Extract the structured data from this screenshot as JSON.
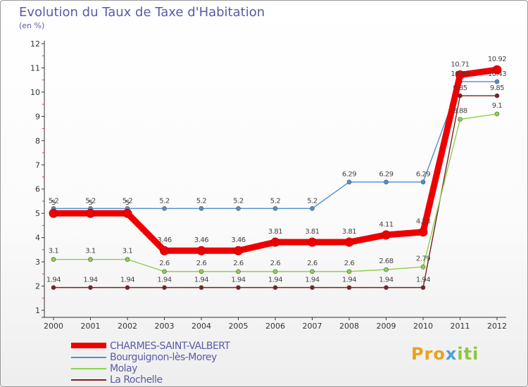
{
  "header": {
    "title": "Evolution du Taux de Taxe d'Habitation",
    "subtitle": "(en %)"
  },
  "logo": {
    "text_main": "Pro",
    "text_x": "x",
    "text_end": "iti"
  },
  "chart_data": {
    "type": "line",
    "title": "Evolution du Taux de Taxe d'Habitation",
    "ylabel": "(en %)",
    "xlabel": "",
    "ylim": [
      1,
      12
    ],
    "yticks": [
      1,
      2,
      3,
      4,
      5,
      6,
      7,
      8,
      9,
      10,
      11,
      12
    ],
    "categories": [
      "2000",
      "2001",
      "2002",
      "2003",
      "2004",
      "2005",
      "2006",
      "2007",
      "2008",
      "2009",
      "2010",
      "2011",
      "2012"
    ],
    "legend_position": "bottom-left",
    "series": [
      {
        "name": "CHARMES-SAINT-VALBERT",
        "color": "#ee0000",
        "values": [
          5,
          5,
          5,
          3.46,
          3.46,
          3.46,
          3.81,
          3.81,
          3.81,
          4.11,
          4.23,
          10.71,
          10.92
        ],
        "labels": [
          "5",
          "5",
          "5",
          "3.46",
          "3.46",
          "3.46",
          "3.81",
          "3.81",
          "3.81",
          "4.11",
          "4.23",
          "10.71",
          "10.92"
        ]
      },
      {
        "name": "Bourguignon-lès-Morey",
        "color": "#4f8fd0",
        "values": [
          5.2,
          5.2,
          5.2,
          5.2,
          5.2,
          5.2,
          5.2,
          5.2,
          6.29,
          6.29,
          6.29,
          10.43,
          10.43
        ],
        "labels": [
          "5.2",
          "5.2",
          "5.2",
          "5.2",
          "5.2",
          "5.2",
          "5.2",
          "5.2",
          "6.29",
          "6.29",
          "6.29",
          "10.43",
          "10.43"
        ]
      },
      {
        "name": "Molay",
        "color": "#8cd050",
        "values": [
          3.1,
          3.1,
          3.1,
          2.6,
          2.6,
          2.6,
          2.6,
          2.6,
          2.6,
          2.68,
          2.79,
          8.88,
          9.1
        ],
        "labels": [
          "3.1",
          "3.1",
          "3.1",
          "2.6",
          "2.6",
          "2.6",
          "2.6",
          "2.6",
          "2.6",
          "2.68",
          "2.79",
          "8.88",
          "9.1"
        ]
      },
      {
        "name": "La Rochelle",
        "color": "#7a2020",
        "values": [
          1.94,
          1.94,
          1.94,
          1.94,
          1.94,
          1.94,
          1.94,
          1.94,
          1.94,
          1.94,
          1.94,
          9.85,
          9.85
        ],
        "labels": [
          "1.94",
          "1.94",
          "1.94",
          "1.94",
          "1.94",
          "1.94",
          "1.94",
          "1.94",
          "1.94",
          "1.94",
          "1.94",
          "9.85",
          "9.85"
        ]
      }
    ]
  }
}
